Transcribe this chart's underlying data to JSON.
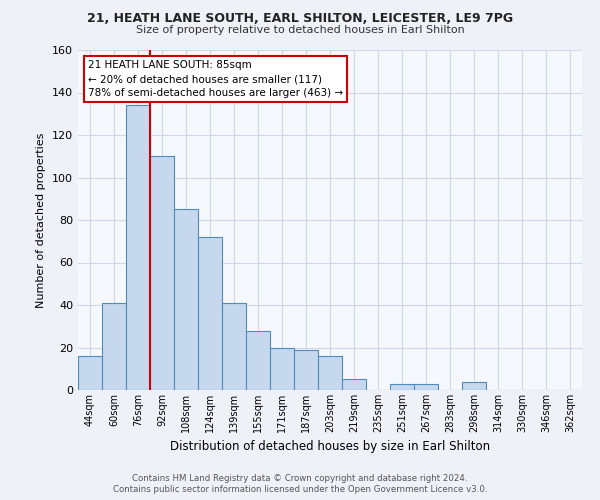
{
  "title": "21, HEATH LANE SOUTH, EARL SHILTON, LEICESTER, LE9 7PG",
  "subtitle": "Size of property relative to detached houses in Earl Shilton",
  "xlabel": "Distribution of detached houses by size in Earl Shilton",
  "ylabel": "Number of detached properties",
  "categories": [
    "44sqm",
    "60sqm",
    "76sqm",
    "92sqm",
    "108sqm",
    "124sqm",
    "139sqm",
    "155sqm",
    "171sqm",
    "187sqm",
    "203sqm",
    "219sqm",
    "235sqm",
    "251sqm",
    "267sqm",
    "283sqm",
    "298sqm",
    "314sqm",
    "330sqm",
    "346sqm",
    "362sqm"
  ],
  "values": [
    16,
    41,
    134,
    110,
    85,
    72,
    41,
    28,
    20,
    19,
    16,
    5,
    0,
    3,
    3,
    0,
    4,
    0,
    0,
    0,
    0
  ],
  "bar_color": "#c5d8ed",
  "bar_edge_color": "#4f8bbf",
  "property_line_color": "#cc0000",
  "annotation_box_color": "#cc0000",
  "annotation_lines": [
    "21 HEATH LANE SOUTH: 85sqm",
    "← 20% of detached houses are smaller (117)",
    "78% of semi-detached houses are larger (463) →"
  ],
  "ylim": [
    0,
    160
  ],
  "yticks": [
    0,
    20,
    40,
    60,
    80,
    100,
    120,
    140,
    160
  ],
  "footer_line1": "Contains HM Land Registry data © Crown copyright and database right 2024.",
  "footer_line2": "Contains public sector information licensed under the Open Government Licence v3.0.",
  "bg_color": "#eef2f8",
  "plot_bg_color": "#f5f8fd",
  "grid_color": "#d0d8e8"
}
